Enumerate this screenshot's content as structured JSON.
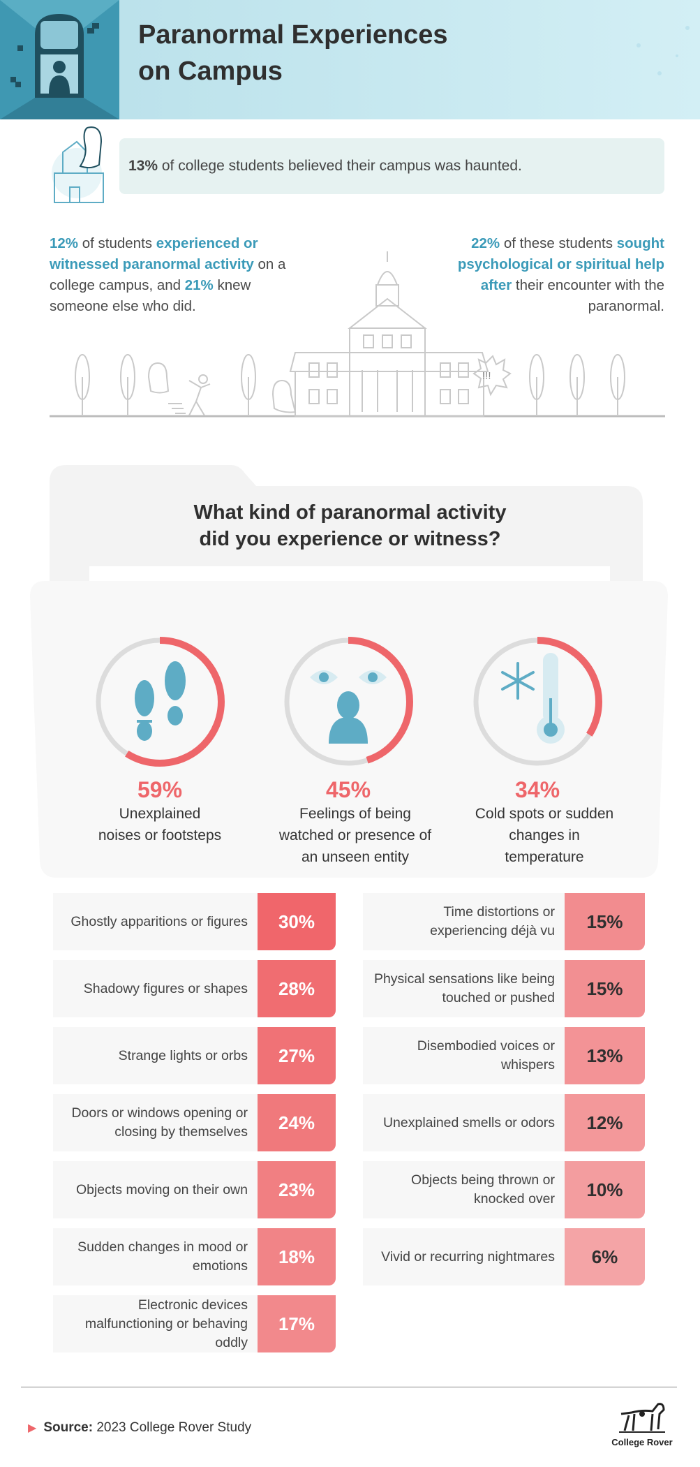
{
  "header": {
    "title_line1": "Paranormal Experiences",
    "title_line2": "on Campus"
  },
  "banner": {
    "pct": "13%",
    "text": " of college students believed their campus was haunted."
  },
  "left_stat": {
    "pct1": "12%",
    "t1": " of students ",
    "hl1": "experienced or witnessed paranormal activity",
    "t2": " on a college campus, and ",
    "pct2": "21%",
    "t3": " knew someone else who did."
  },
  "right_stat": {
    "pct": "22%",
    "t1": " of these students ",
    "hl": "sought psychological or spiritual help after",
    "t2": " their encounter with the paranormal."
  },
  "illustration": {
    "exclaim": "!!!"
  },
  "question": {
    "line1": "What kind of paranormal activity",
    "line2": "did you experience or witness?"
  },
  "colors": {
    "accent_red": "#ee666a",
    "teal": "#3a9ab8",
    "ring_gray": "#dcdcdc",
    "icon_blue": "#5eacc5"
  },
  "chart_data": {
    "type": "table",
    "title": "What kind of paranormal activity did you experience or witness?",
    "top": [
      {
        "label": "Unexplained noises or footsteps",
        "value": 59,
        "text": "59%",
        "icon": "footprints-icon"
      },
      {
        "label": "Feelings of being watched or presence of an unseen entity",
        "value": 45,
        "text": "45%",
        "icon": "watching-eyes-icon"
      },
      {
        "label": "Cold spots or sudden changes in temperature",
        "value": 34,
        "text": "34%",
        "icon": "snowflake-thermometer-icon"
      }
    ],
    "left": [
      {
        "label": "Ghostly apparitions or figures",
        "value": 30,
        "text": "30%",
        "color": "#f0666b"
      },
      {
        "label": "Shadowy figures or shapes",
        "value": 28,
        "text": "28%",
        "color": "#f06d71"
      },
      {
        "label": "Strange lights or orbs",
        "value": 27,
        "text": "27%",
        "color": "#f07276"
      },
      {
        "label": "Doors or windows opening or closing by themselves",
        "value": 24,
        "text": "24%",
        "color": "#f0797c"
      },
      {
        "label": "Objects moving on their own",
        "value": 23,
        "text": "23%",
        "color": "#f17f82"
      },
      {
        "label": "Sudden changes in mood or emotions",
        "value": 18,
        "text": "18%",
        "color": "#f18487"
      },
      {
        "label": "Electronic devices malfunctioning or behaving oddly",
        "value": 17,
        "text": "17%",
        "color": "#f2898c"
      }
    ],
    "right": [
      {
        "label": "Time distortions or experiencing déjà vu",
        "value": 15,
        "text": "15%",
        "color": "#f28c8f"
      },
      {
        "label": "Physical sensations like being touched or pushed",
        "value": 15,
        "text": "15%",
        "color": "#f28f92"
      },
      {
        "label": "Disembodied voices or whispers",
        "value": 13,
        "text": "13%",
        "color": "#f39396"
      },
      {
        "label": "Unexplained smells or odors",
        "value": 12,
        "text": "12%",
        "color": "#f3989a"
      },
      {
        "label": "Objects being thrown or knocked over",
        "value": 10,
        "text": "10%",
        "color": "#f39d9f"
      },
      {
        "label": "Vivid or recurring nightmares",
        "value": 6,
        "text": "6%",
        "color": "#f4a4a6"
      }
    ]
  },
  "footer": {
    "source_label": "Source:",
    "source_text": " 2023 College Rover Study",
    "logo_text": "College Rover"
  }
}
